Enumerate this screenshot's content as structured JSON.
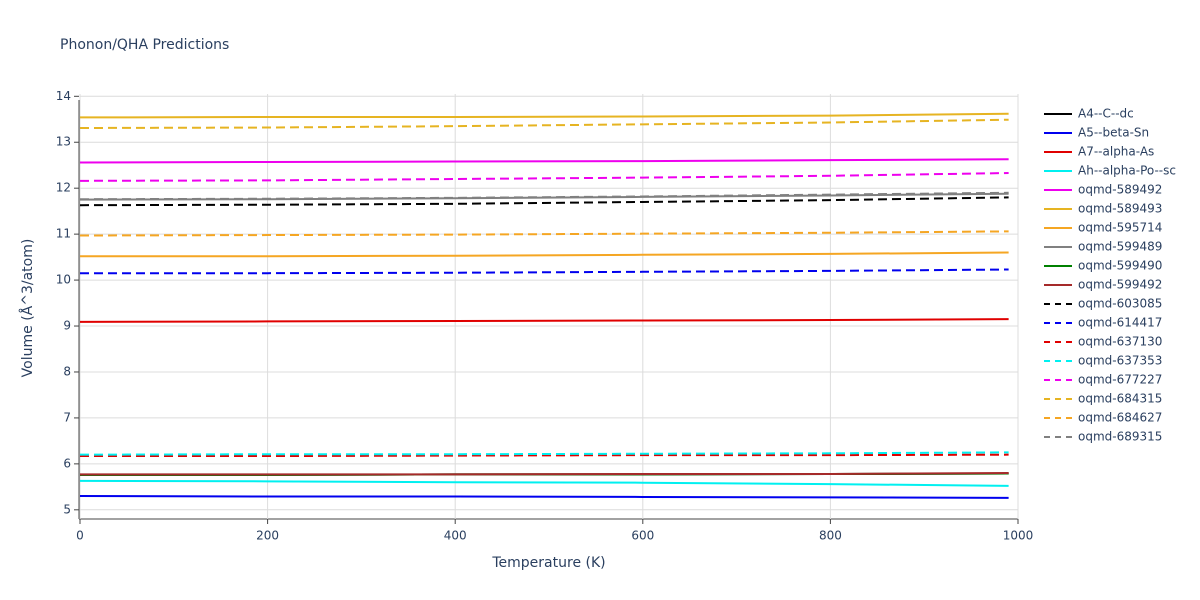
{
  "chart_data": {
    "type": "line",
    "title": "Phonon/QHA Predictions",
    "x_label": "Temperature (K)",
    "y_label": "Volume (Å^3/atom)",
    "x": [
      0,
      200,
      400,
      600,
      800,
      990
    ],
    "xlim": [
      0,
      1000
    ],
    "xticks": [
      0,
      200,
      400,
      600,
      800,
      1000
    ],
    "ylim": [
      4.8,
      14.05
    ],
    "yticks": [
      5,
      6,
      7,
      8,
      9,
      10,
      11,
      12,
      13,
      14
    ],
    "grid": true,
    "legend": "right",
    "series": [
      {
        "name": "A4--C--dc",
        "color": "#000000",
        "dash": "solid",
        "values": [
          5.76,
          5.76,
          5.77,
          5.77,
          5.78,
          5.79
        ]
      },
      {
        "name": "A5--beta-Sn",
        "color": "#0000ee",
        "dash": "solid",
        "values": [
          5.3,
          5.29,
          5.29,
          5.28,
          5.27,
          5.26
        ]
      },
      {
        "name": "A7--alpha-As",
        "color": "#e00000",
        "dash": "solid",
        "values": [
          9.09,
          9.1,
          9.11,
          9.12,
          9.13,
          9.15
        ]
      },
      {
        "name": "Ah--alpha-Po--sc",
        "color": "#00f0f0",
        "dash": "solid",
        "values": [
          5.63,
          5.62,
          5.6,
          5.59,
          5.56,
          5.52
        ]
      },
      {
        "name": "oqmd-589492",
        "color": "#ee00ee",
        "dash": "solid",
        "values": [
          12.56,
          12.57,
          12.58,
          12.59,
          12.61,
          12.63
        ]
      },
      {
        "name": "oqmd-589493",
        "color": "#e6b422",
        "dash": "solid",
        "values": [
          13.54,
          13.55,
          13.55,
          13.56,
          13.58,
          13.62
        ]
      },
      {
        "name": "oqmd-595714",
        "color": "#f5a623",
        "dash": "solid",
        "values": [
          10.52,
          10.52,
          10.53,
          10.55,
          10.57,
          10.6
        ]
      },
      {
        "name": "oqmd-599489",
        "color": "#808080",
        "dash": "solid",
        "values": [
          11.75,
          11.76,
          11.78,
          11.81,
          11.84,
          11.88
        ]
      },
      {
        "name": "oqmd-599490",
        "color": "#008000",
        "dash": "solid",
        "values": [
          5.76,
          5.76,
          5.77,
          5.77,
          5.78,
          5.79
        ]
      },
      {
        "name": "oqmd-599492",
        "color": "#a52a2a",
        "dash": "solid",
        "values": [
          5.77,
          5.77,
          5.77,
          5.78,
          5.78,
          5.8
        ]
      },
      {
        "name": "oqmd-603085",
        "color": "#000000",
        "dash": "dash",
        "values": [
          11.63,
          11.64,
          11.66,
          11.7,
          11.74,
          11.8
        ]
      },
      {
        "name": "oqmd-614417",
        "color": "#0000ee",
        "dash": "dash",
        "values": [
          10.15,
          10.15,
          10.16,
          10.18,
          10.2,
          10.23
        ]
      },
      {
        "name": "oqmd-637130",
        "color": "#e00000",
        "dash": "dash",
        "values": [
          6.17,
          6.17,
          6.18,
          6.19,
          6.19,
          6.2
        ]
      },
      {
        "name": "oqmd-637353",
        "color": "#00f0f0",
        "dash": "dash",
        "values": [
          6.2,
          6.21,
          6.21,
          6.22,
          6.23,
          6.25
        ]
      },
      {
        "name": "oqmd-677227",
        "color": "#ee00ee",
        "dash": "dash",
        "values": [
          12.16,
          12.17,
          12.2,
          12.23,
          12.27,
          12.33
        ]
      },
      {
        "name": "oqmd-684315",
        "color": "#e6b422",
        "dash": "dash",
        "values": [
          13.31,
          13.32,
          13.35,
          13.39,
          13.43,
          13.49
        ]
      },
      {
        "name": "oqmd-684627",
        "color": "#f5a623",
        "dash": "dash",
        "values": [
          10.97,
          10.98,
          10.99,
          11.01,
          11.03,
          11.06
        ]
      },
      {
        "name": "oqmd-689315",
        "color": "#808080",
        "dash": "dash",
        "values": [
          11.76,
          11.77,
          11.79,
          11.82,
          11.86,
          11.9
        ]
      }
    ]
  }
}
